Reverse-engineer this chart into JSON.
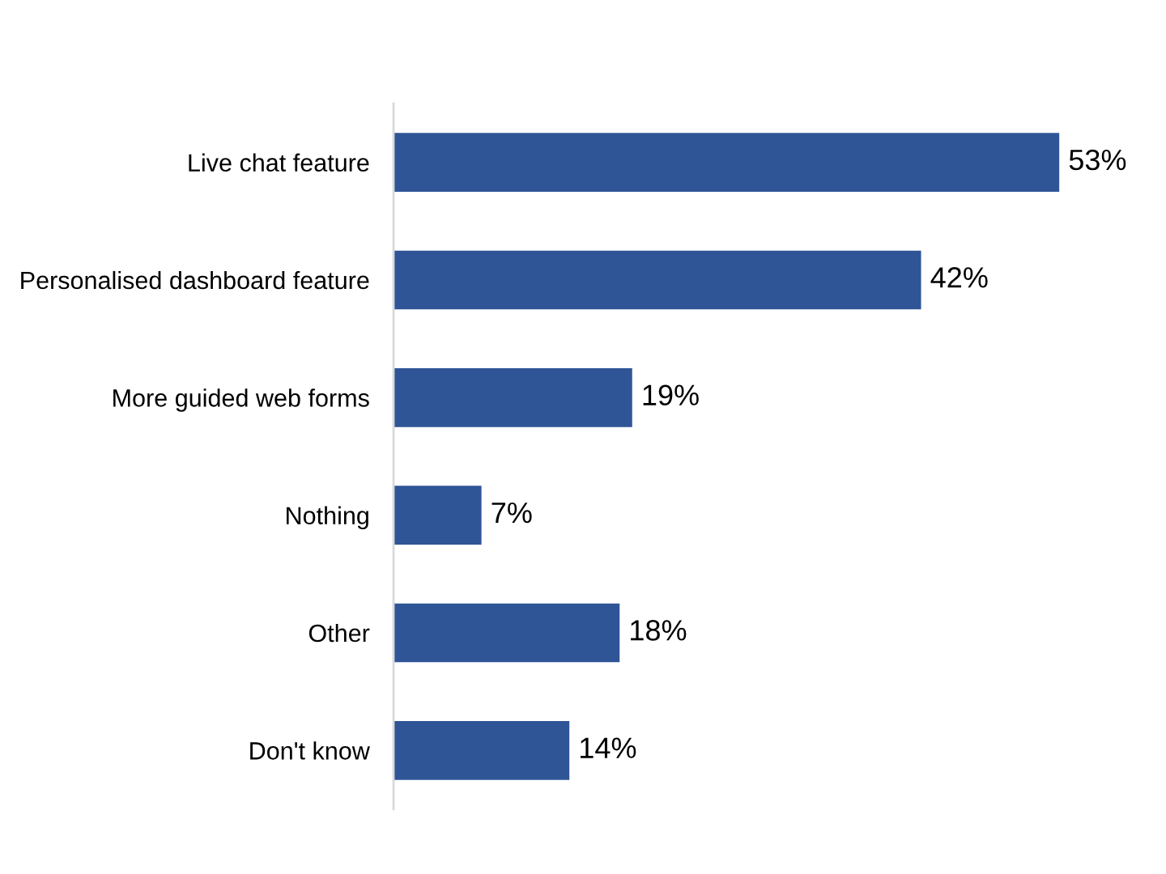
{
  "chart_data": {
    "type": "bar",
    "orientation": "horizontal",
    "categories": [
      "Live chat feature",
      "Personalised dashboard feature",
      "More guided web forms",
      "Nothing",
      "Other",
      "Don't know"
    ],
    "values": [
      53,
      42,
      19,
      7,
      18,
      14
    ],
    "value_labels": [
      "53%",
      "42%",
      "19%",
      "7%",
      "18%",
      "14%"
    ],
    "color": "#2f5597",
    "tick_labels": "y"
  }
}
